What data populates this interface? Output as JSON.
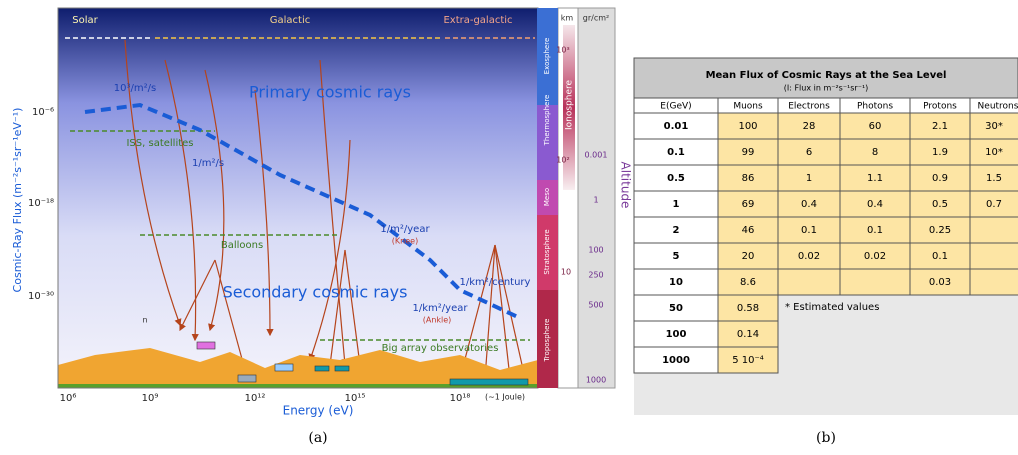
{
  "panel_a": {
    "regions": [
      "Solar",
      "Galactic",
      "Extra-galactic"
    ],
    "primary": "Primary cosmic rays",
    "secondary": "Secondary cosmic rays",
    "rates": [
      "10³/m²/s",
      "1/m²/s",
      "1/m²/year",
      "(Knee)",
      "1/km²/year",
      "(Ankle)",
      "1/km²/century"
    ],
    "detectors": [
      "ISS, satellites",
      "Balloons",
      "Big array observatories"
    ],
    "particle": "n",
    "y_label": "Cosmic-Ray Flux (m⁻²s⁻¹sr⁻¹eV⁻¹)",
    "y_ticks": [
      "10⁻⁶",
      "10⁻¹⁸",
      "10⁻³⁰"
    ],
    "x_label": "Energy (eV)",
    "x_ticks": [
      "10⁶",
      "10⁹",
      "10¹²",
      "10¹⁵",
      "10¹⁸"
    ],
    "joule": "(~1 Joule)",
    "altitude": {
      "km_header": "km",
      "gr_header": "gr/cm²",
      "layers": [
        "Exosphere",
        "Ionosphere",
        "Thermosphere",
        "Meso",
        "Stratosphere",
        "Troposphere"
      ],
      "km": [
        "10³",
        "10²",
        "10"
      ],
      "gr": [
        "0.001",
        "1",
        "100",
        "250",
        "500",
        "1000"
      ],
      "label": "Altitude"
    },
    "caption": "(a)"
  },
  "panel_b": {
    "title": "Mean Flux of Cosmic Rays at the Sea Level",
    "subtitle": "(I: Flux in m⁻²s⁻¹sr⁻¹)",
    "header": [
      "E(GeV)",
      "Muons",
      "Electrons",
      "Photons",
      "Protons",
      "Neutrons"
    ],
    "rows": [
      [
        "0.01",
        "100",
        "28",
        "60",
        "2.1",
        "30*"
      ],
      [
        "0.1",
        "99",
        "6",
        "8",
        "1.9",
        "10*"
      ],
      [
        "0.5",
        "86",
        "1",
        "1.1",
        "0.9",
        "1.5"
      ],
      [
        "1",
        "69",
        "0.4",
        "0.4",
        "0.5",
        "0.7"
      ],
      [
        "2",
        "46",
        "0.1",
        "0.1",
        "0.25",
        null
      ],
      [
        "5",
        "20",
        "0.02",
        "0.02",
        "0.1",
        null
      ],
      [
        "10",
        "8.6",
        null,
        null,
        "0.03",
        null
      ],
      [
        "50",
        "0.58"
      ],
      [
        "100",
        "0.14"
      ],
      [
        "1000",
        "5 10⁻⁴"
      ]
    ],
    "note": "* Estimated values",
    "caption": "(b)"
  }
}
